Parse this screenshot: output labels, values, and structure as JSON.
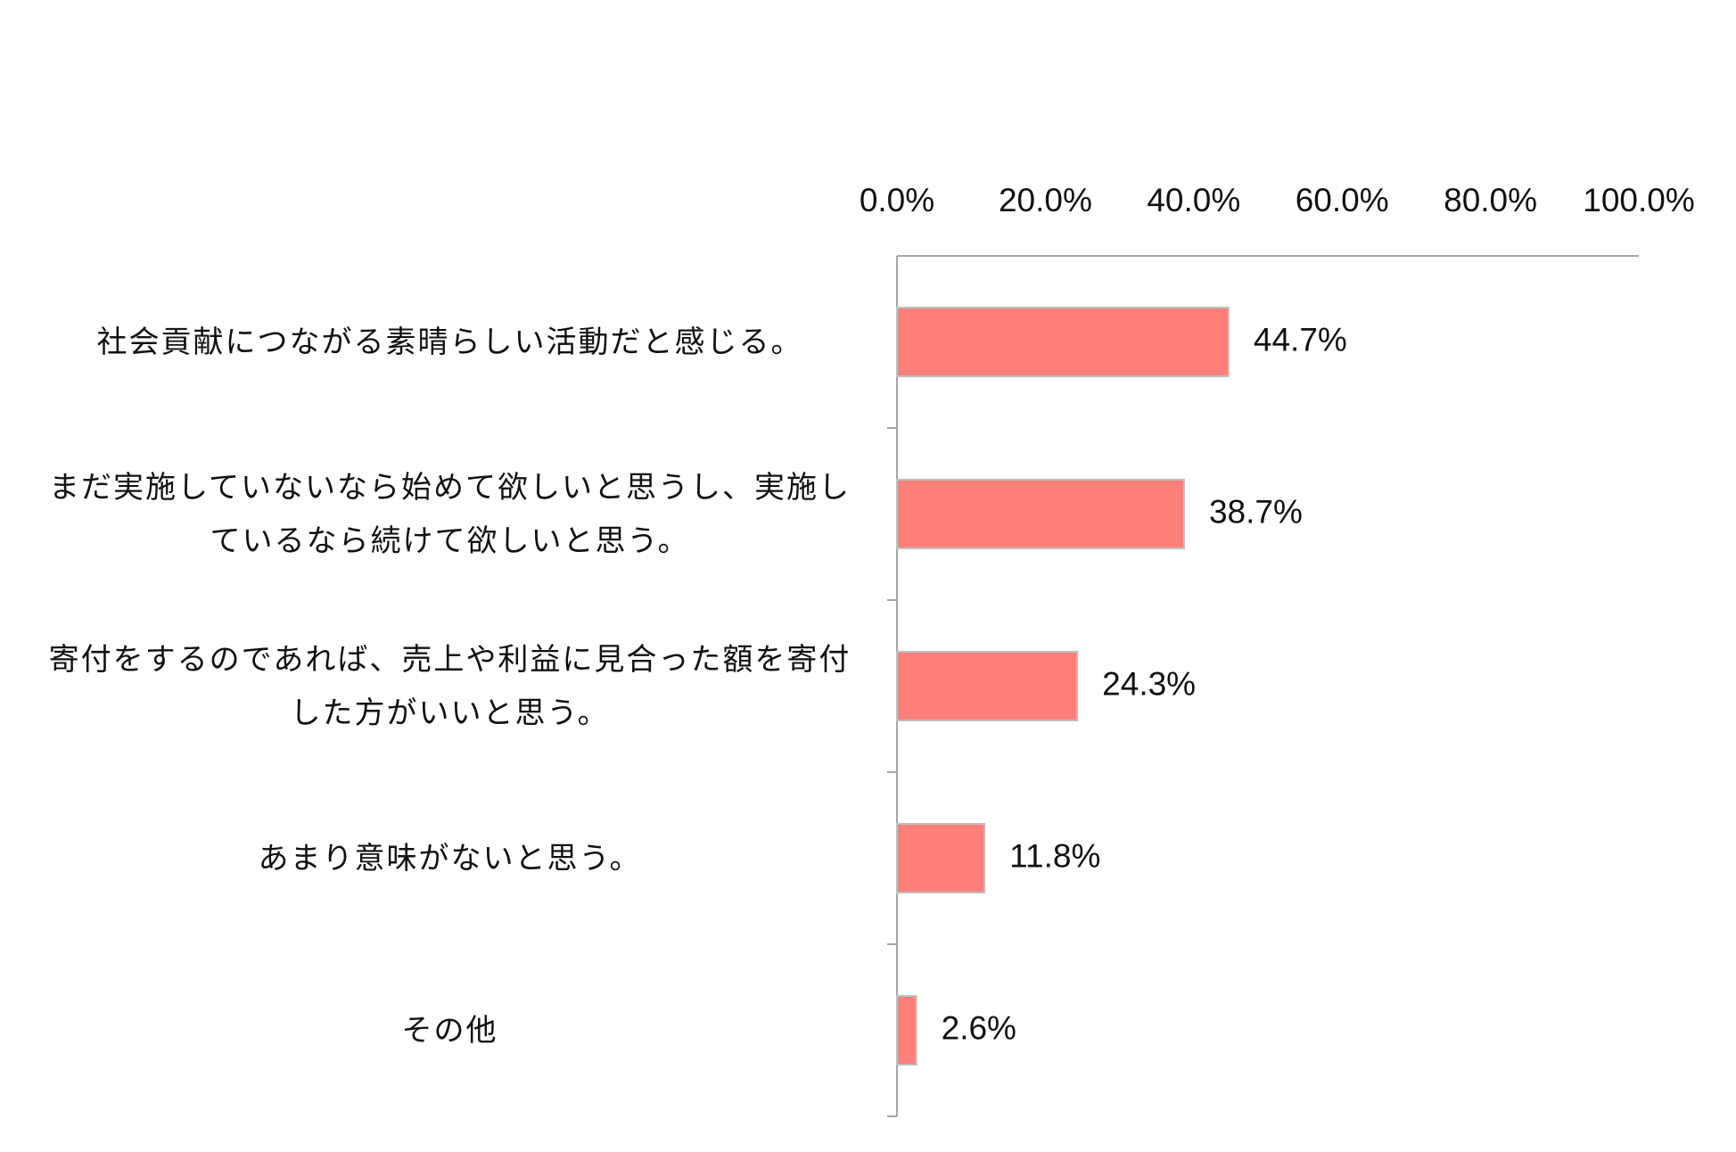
{
  "chart_data": {
    "type": "bar",
    "orientation": "horizontal",
    "categories": [
      "社会貢献につながる素晴らしい活動だと感じる。",
      "まだ実施していないなら始めて欲しいと思うし、実施しているなら続けて欲しいと思う。",
      "寄付をするのであれば、売上や利益に見合った額を寄付した方がいいと思う。",
      "あまり意味がないと思う。",
      "その他"
    ],
    "values": [
      44.7,
      38.7,
      24.3,
      11.8,
      2.6
    ],
    "value_labels": [
      "44.7%",
      "38.7%",
      "24.3%",
      "11.8%",
      "2.6%"
    ],
    "color": "#ff7f7b",
    "xlim": [
      0,
      100
    ],
    "xticks": [
      {
        "value": 0,
        "label": "0.0%"
      },
      {
        "value": 20,
        "label": "20.0%"
      },
      {
        "value": 40,
        "label": "40.0%"
      },
      {
        "value": 60,
        "label": "60.0%"
      },
      {
        "value": 80,
        "label": "80.0%"
      },
      {
        "value": 100,
        "label": "100.0%"
      }
    ],
    "grid": false
  }
}
